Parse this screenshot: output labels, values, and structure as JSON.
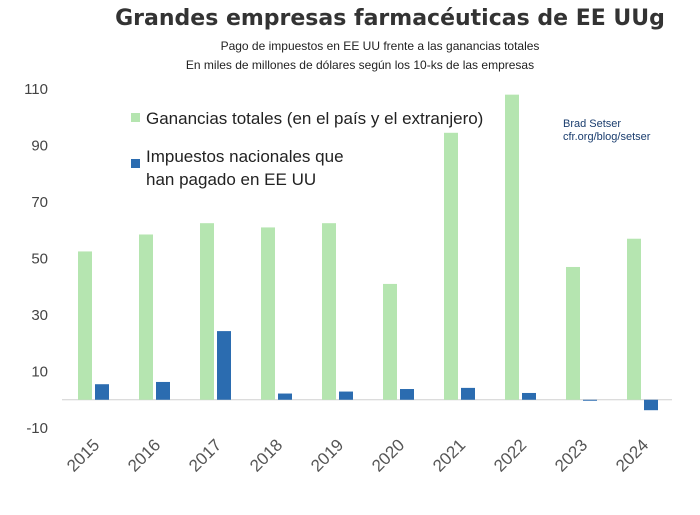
{
  "chart_data": {
    "type": "bar",
    "title": "Grandes empresas farmacéuticas de EE UUg",
    "subtitle_line1": "Pago de impuestos en EE UU frente a las ganancias totales",
    "subtitle_line2": "En miles de millones de dólares según los 10-ks de las empresas",
    "categories": [
      "2015",
      "2016",
      "2017",
      "2018",
      "2019",
      "2020",
      "2021",
      "2022",
      "2023",
      "2024"
    ],
    "series": [
      {
        "name": "Ganancias totales (en el país y el extranjero)",
        "color": "#b5e5b0",
        "values": [
          52.5,
          58.5,
          62.5,
          61,
          62.5,
          41,
          94.5,
          108,
          47,
          57
        ]
      },
      {
        "name_line1": "Impuestos nacionales que",
        "name_line2": "han pagado en EE UU",
        "color": "#2b6cb0",
        "values": [
          5.5,
          6.3,
          24.3,
          2.2,
          2.9,
          3.8,
          4.2,
          2.4,
          -0.3,
          -3.7
        ]
      }
    ],
    "yticks": [
      110,
      90,
      70,
      50,
      30,
      10,
      -10
    ],
    "ylim": [
      -10,
      110
    ],
    "xlabel": "",
    "ylabel": "",
    "grid": false,
    "legend_position": "top-left"
  },
  "credit": {
    "line1": "Brad Setser",
    "line2": "cfr.org/blog/setser"
  }
}
